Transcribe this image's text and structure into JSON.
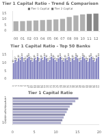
{
  "chart_data": [
    {
      "type": "bar",
      "title": "Tier 1 Capital Ratio - Trend & Comparison",
      "annotations": [
        "■ Tier 1 Capital  ■ Tier 2 Capital"
      ],
      "categories": [
        "00",
        "01",
        "02",
        "03",
        "04",
        "05",
        "06",
        "07",
        "08",
        "09",
        "10",
        "11",
        "12"
      ],
      "values": [
        8.2,
        8.4,
        8.7,
        9.0,
        9.2,
        9.5,
        9.8,
        10.2,
        11.8,
        13.2,
        14.0,
        14.5,
        14.8
      ],
      "colors": [
        "#b0b0b0",
        "#b0b0b0",
        "#b0b0b0",
        "#b0b0b0",
        "#b0b0b0",
        "#b0b0b0",
        "#b0b0b0",
        "#b0b0b0",
        "#b0b0b0",
        "#b0b0b0",
        "#b0b0b0",
        "#888888",
        "#888888"
      ],
      "ylim": [
        0,
        17
      ],
      "yticks": [
        0,
        5,
        10,
        15
      ],
      "grid": false
    },
    {
      "type": "bar",
      "title": "Tier 1 Capital Ratio - Top 50 Banks",
      "categories": [
        "1",
        "2",
        "3",
        "4",
        "5",
        "6",
        "7",
        "8",
        "9",
        "10",
        "11",
        "12",
        "13",
        "14",
        "15",
        "16",
        "17",
        "18",
        "19",
        "20",
        "21",
        "22",
        "23",
        "24",
        "25",
        "26",
        "27",
        "28",
        "29",
        "30",
        "31",
        "32",
        "33",
        "34",
        "35",
        "36",
        "37",
        "38",
        "39",
        "40",
        "41",
        "42",
        "43",
        "44",
        "45",
        "46",
        "47",
        "48",
        "49",
        "50"
      ],
      "values": [
        10,
        12,
        11,
        13,
        12,
        14,
        11,
        12,
        13,
        14,
        12,
        11,
        13,
        12,
        14,
        11,
        13,
        12,
        14,
        13,
        11,
        12,
        14,
        13,
        12,
        11,
        13,
        14,
        12,
        11,
        13,
        12,
        14,
        11,
        13,
        12,
        14,
        13,
        11,
        12,
        14,
        13,
        12,
        11,
        13,
        14,
        12,
        11,
        13,
        14
      ],
      "color": "#7777bb",
      "ylim": [
        0,
        18
      ],
      "yticks": [
        0,
        5,
        10,
        15
      ],
      "grid": false,
      "data_labels": true
    },
    {
      "type": "bar",
      "orientation": "horizontal",
      "title": "Tier 1 Capital Ratio",
      "categories": [
        "1",
        "2",
        "3",
        "4",
        "5",
        "6",
        "7",
        "8",
        "9",
        "10"
      ],
      "values": [
        15.2,
        14.5,
        13.8,
        13.2,
        12.8,
        12.5,
        12.1,
        11.8,
        11.5,
        11.2
      ],
      "colors": [
        "#8888aa",
        "#aaaacc",
        "#8888aa",
        "#aaaacc",
        "#8888aa",
        "#aaaacc",
        "#8888aa",
        "#aaaacc",
        "#8888aa",
        "#aaaacc"
      ],
      "xlim": [
        0,
        20
      ],
      "xticks": [
        0,
        5,
        10,
        15,
        20
      ],
      "grid": false
    }
  ]
}
